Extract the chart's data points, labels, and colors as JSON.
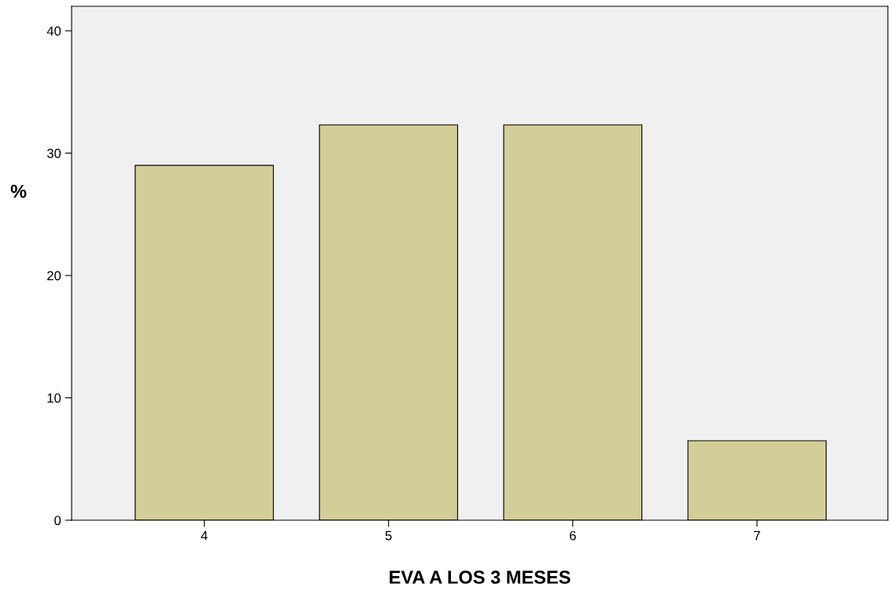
{
  "chart_data": {
    "type": "bar",
    "xlabel": "EVA A LOS 3 MESES",
    "ylabel": "%",
    "categories": [
      "4",
      "5",
      "6",
      "7"
    ],
    "values": [
      29.0,
      32.3,
      32.3,
      6.5
    ],
    "color": "#d3ce97",
    "ylim": [
      0,
      42
    ],
    "yticks": [
      0,
      10,
      20,
      30,
      40
    ],
    "grid": false,
    "legend": false
  }
}
